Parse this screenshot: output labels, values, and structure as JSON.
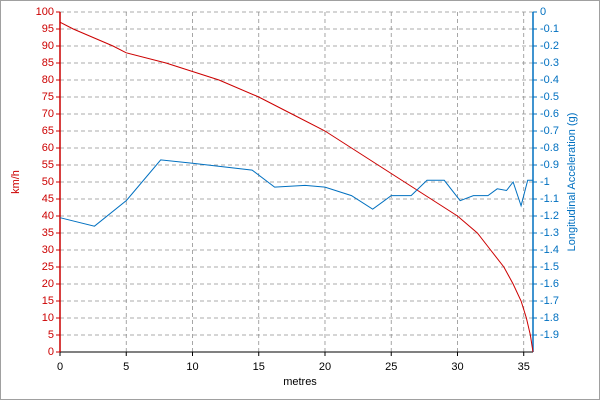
{
  "chart_data": {
    "type": "line",
    "xlabel": "metres",
    "ylabel": "km/h",
    "y2label": "Longitudinal Acceleration (g)",
    "xlim": [
      0,
      35.7
    ],
    "xticks": [
      0,
      5,
      10,
      15,
      20,
      25,
      30,
      35
    ],
    "ylim": [
      0,
      100
    ],
    "yticks": [
      0,
      5,
      10,
      15,
      20,
      25,
      30,
      35,
      40,
      45,
      50,
      55,
      60,
      65,
      70,
      75,
      80,
      85,
      90,
      95,
      100
    ],
    "y2lim": [
      -2,
      0
    ],
    "y2ticks": [
      0,
      -0.1,
      -0.2,
      -0.3,
      -0.4,
      -0.5,
      -0.6,
      -0.7,
      -0.8,
      -0.9,
      -1,
      -1.1,
      -1.2,
      -1.3,
      -1.4,
      -1.5,
      -1.6,
      -1.7,
      -1.8,
      -1.9
    ],
    "grid": true,
    "series": [
      {
        "name": "km/h",
        "color": "#cc0000",
        "x": [
          0,
          1,
          4,
          5,
          8,
          12,
          15,
          17.5,
          20,
          22,
          24,
          26,
          28,
          30,
          31.5,
          32.5,
          33.5,
          34.2,
          34.8,
          35.2,
          35.5,
          35.7
        ],
        "values": [
          97,
          95,
          90,
          88,
          85,
          80,
          75,
          70,
          65,
          60,
          55,
          50,
          45,
          40,
          35,
          30,
          25,
          20,
          15,
          10,
          5,
          0
        ]
      },
      {
        "name": "Longitudinal Acceleration (g)",
        "color": "#0070c0",
        "axis": "y2",
        "x": [
          0,
          2.6,
          5,
          7.6,
          10,
          14.5,
          16.2,
          18.5,
          20,
          22,
          23.6,
          25,
          26.5,
          27.7,
          29,
          30.2,
          31.2,
          32.3,
          33,
          33.7,
          34.2,
          34.8,
          35.3,
          35.7
        ],
        "values": [
          -1.21,
          -1.26,
          -1.11,
          -0.87,
          -0.89,
          -0.93,
          -1.03,
          -1.02,
          -1.03,
          -1.08,
          -1.16,
          -1.08,
          -1.08,
          -0.99,
          -0.99,
          -1.11,
          -1.08,
          -1.08,
          -1.04,
          -1.05,
          -1.0,
          -1.14,
          -0.99,
          -0.99
        ]
      }
    ]
  }
}
